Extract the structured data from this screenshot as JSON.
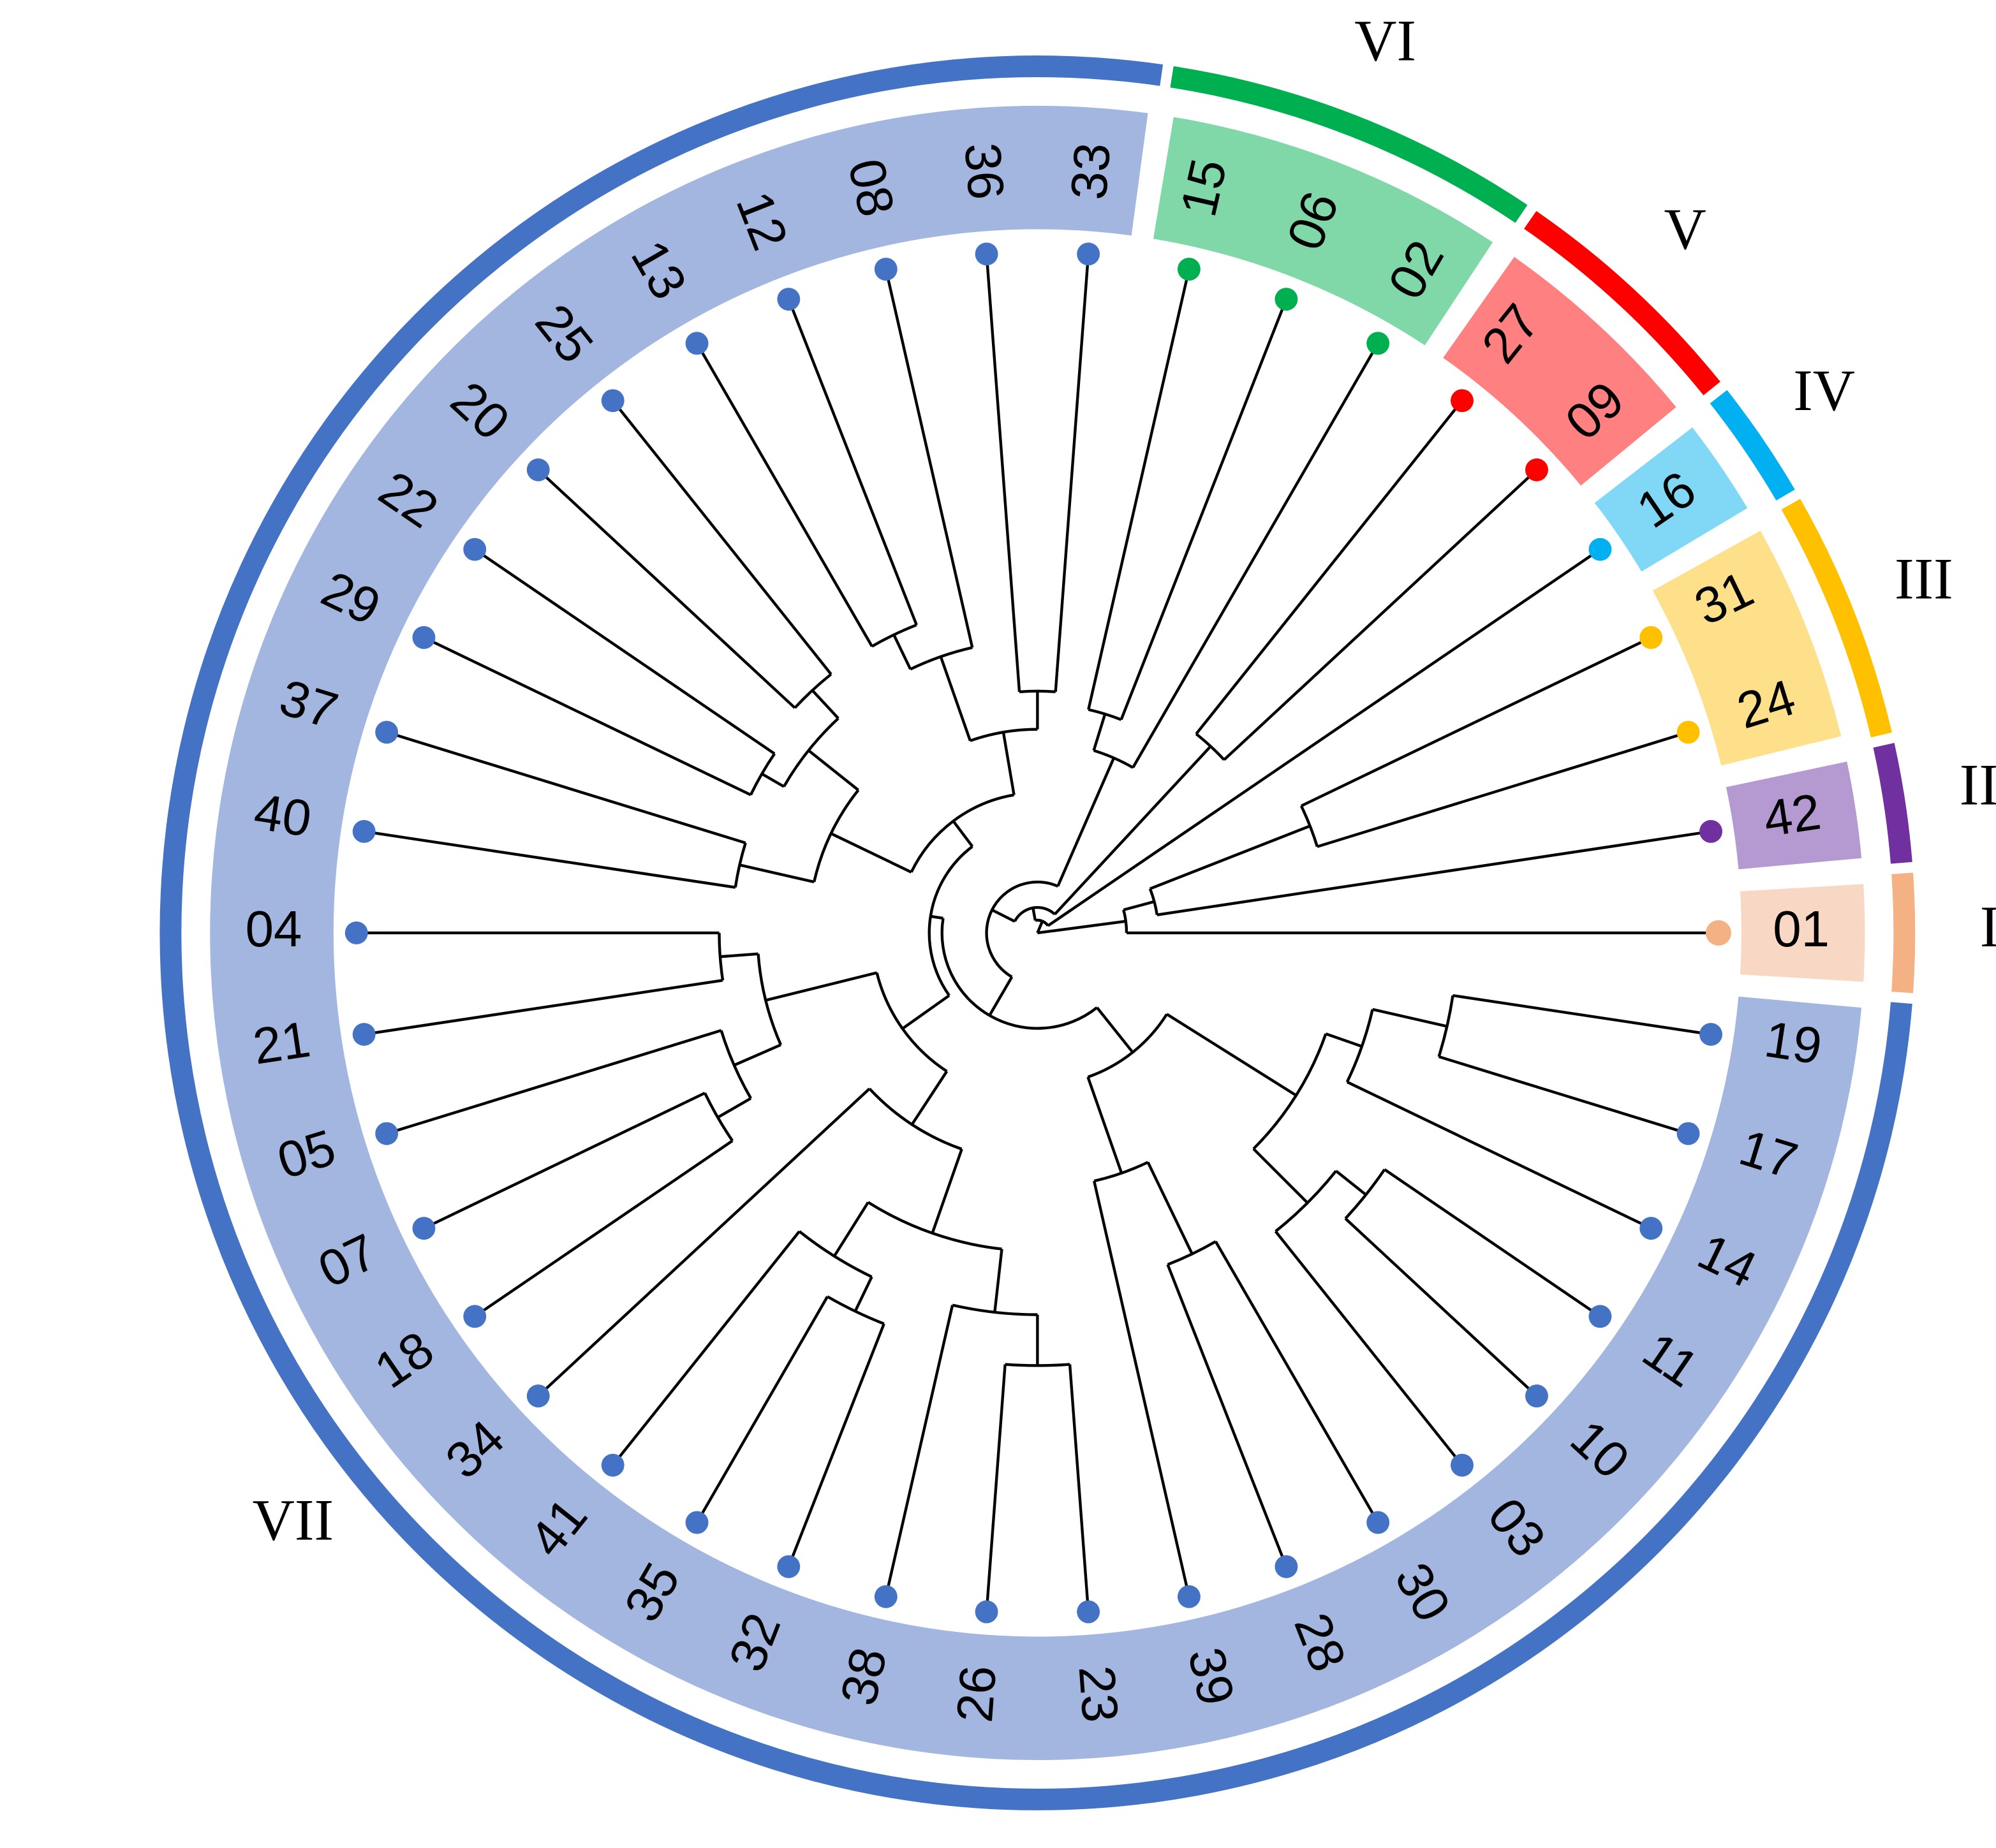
{
  "clusters": [
    {
      "label": "I",
      "color": "#f4b183",
      "band_color": "#f8d7c4",
      "leaves": [
        "01"
      ]
    },
    {
      "label": "II",
      "color": "#7030a0",
      "band_color": "#b49ad0",
      "leaves": [
        "42"
      ]
    },
    {
      "label": "III",
      "color": "#ffc000",
      "band_color": "#ffe08a",
      "leaves": [
        "24",
        "31"
      ]
    },
    {
      "label": "IV",
      "color": "#00b0f0",
      "band_color": "#80d8f6",
      "leaves": [
        "16"
      ]
    },
    {
      "label": "V",
      "color": "#ff0000",
      "band_color": "#ff8080",
      "leaves": [
        "09",
        "27"
      ]
    },
    {
      "label": "VI",
      "color": "#00b050",
      "band_color": "#80d8a8",
      "leaves": [
        "02",
        "06",
        "15"
      ]
    },
    {
      "label": "VII",
      "color": "#4472c4",
      "band_color": "#a2b6e0",
      "leaves": [
        "33",
        "36",
        "08",
        "12",
        "13",
        "25",
        "20",
        "22",
        "29",
        "37",
        "40",
        "04",
        "21",
        "05",
        "07",
        "18",
        "34",
        "41",
        "35",
        "32",
        "38",
        "26",
        "23",
        "39",
        "28",
        "30",
        "03",
        "10",
        "11",
        "14",
        "17",
        "19"
      ]
    }
  ]
}
